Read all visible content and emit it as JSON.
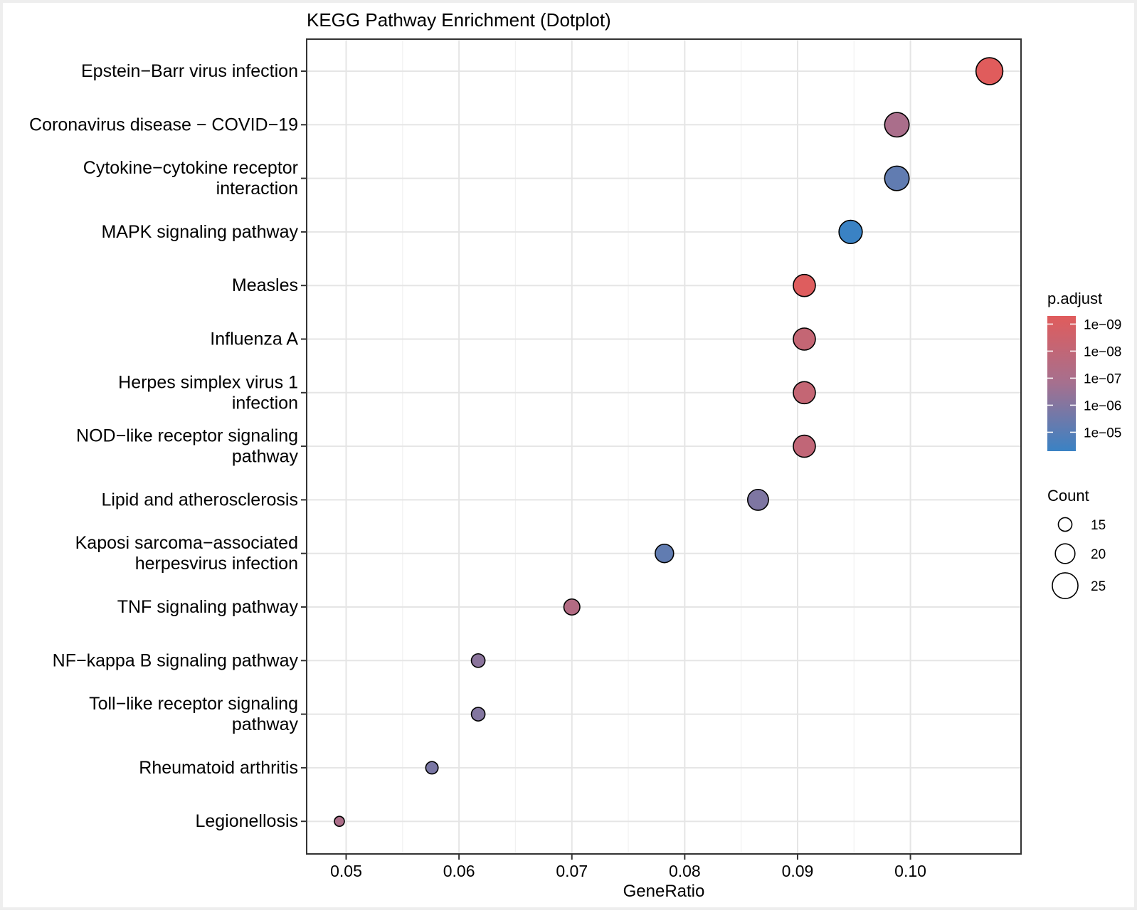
{
  "chart_data": {
    "type": "scatter",
    "title": "KEGG Pathway Enrichment (Dotplot)",
    "xlabel": "GeneRatio",
    "ylabel": "",
    "xlim": [
      0.0465,
      0.1098
    ],
    "xticks": [
      0.05,
      0.06,
      0.07,
      0.08,
      0.09,
      0.1
    ],
    "xtick_labels": [
      "0.05",
      "0.06",
      "0.07",
      "0.08",
      "0.09",
      "0.10"
    ],
    "grid": true,
    "categories": [
      "Epstein−Barr virus infection",
      "Coronavirus disease − COVID−19",
      "Cytokine−cytokine receptor interaction",
      "MAPK signaling pathway",
      "Measles",
      "Influenza A",
      "Herpes simplex virus 1 infection",
      "NOD−like receptor signaling pathway",
      "Lipid and atherosclerosis",
      "Kaposi sarcoma−associated herpesvirus infection",
      "TNF signaling pathway",
      "NF−kappa B signaling pathway",
      "Toll−like receptor signaling pathway",
      "Rheumatoid arthritis",
      "Legionellosis"
    ],
    "category_lines": [
      [
        "Epstein−Barr virus infection"
      ],
      [
        "Coronavirus disease − COVID−19"
      ],
      [
        "Cytokine−cytokine receptor",
        "interaction"
      ],
      [
        "MAPK signaling pathway"
      ],
      [
        "Measles"
      ],
      [
        "Influenza A"
      ],
      [
        "Herpes simplex virus 1",
        "infection"
      ],
      [
        "NOD−like receptor signaling",
        "pathway"
      ],
      [
        "Lipid and atherosclerosis"
      ],
      [
        "Kaposi sarcoma−associated",
        "herpesvirus infection"
      ],
      [
        "TNF signaling pathway"
      ],
      [
        "NF−kappa B signaling pathway"
      ],
      [
        "Toll−like receptor signaling",
        "pathway"
      ],
      [
        "Rheumatoid arthritis"
      ],
      [
        "Legionellosis"
      ]
    ],
    "gene_ratio": [
      0.107,
      0.0988,
      0.0988,
      0.0947,
      0.0906,
      0.0906,
      0.0906,
      0.0906,
      0.0865,
      0.0782,
      0.07,
      0.0617,
      0.0617,
      0.0576,
      0.0494
    ],
    "count": [
      26,
      24,
      24,
      23,
      22,
      22,
      22,
      22,
      21,
      19,
      17,
      15,
      15,
      14,
      12
    ],
    "log10_p_adjust": [
      -9.3,
      -7.0,
      -5.2,
      -4.3,
      -9.2,
      -8.1,
      -8.1,
      -8.0,
      -5.9,
      -5.2,
      -7.4,
      -6.2,
      -6.0,
      -5.8,
      -7.1
    ],
    "legend_color": {
      "title": "p.adjust",
      "labels": [
        "1e−09",
        "1e−08",
        "1e−07",
        "1e−06",
        "1e−05"
      ],
      "log10_values": [
        -9,
        -8,
        -7,
        -6,
        -5
      ],
      "range": [
        -9.3,
        -4.3
      ],
      "low_color": "#3a82c4",
      "high_color": "#e05c5c",
      "mid_color": "#a5708f",
      "placement": "right"
    },
    "legend_size": {
      "title": "Count",
      "labels": [
        "15",
        "20",
        "25"
      ],
      "values": [
        15,
        20,
        25
      ],
      "placement": "right"
    }
  }
}
